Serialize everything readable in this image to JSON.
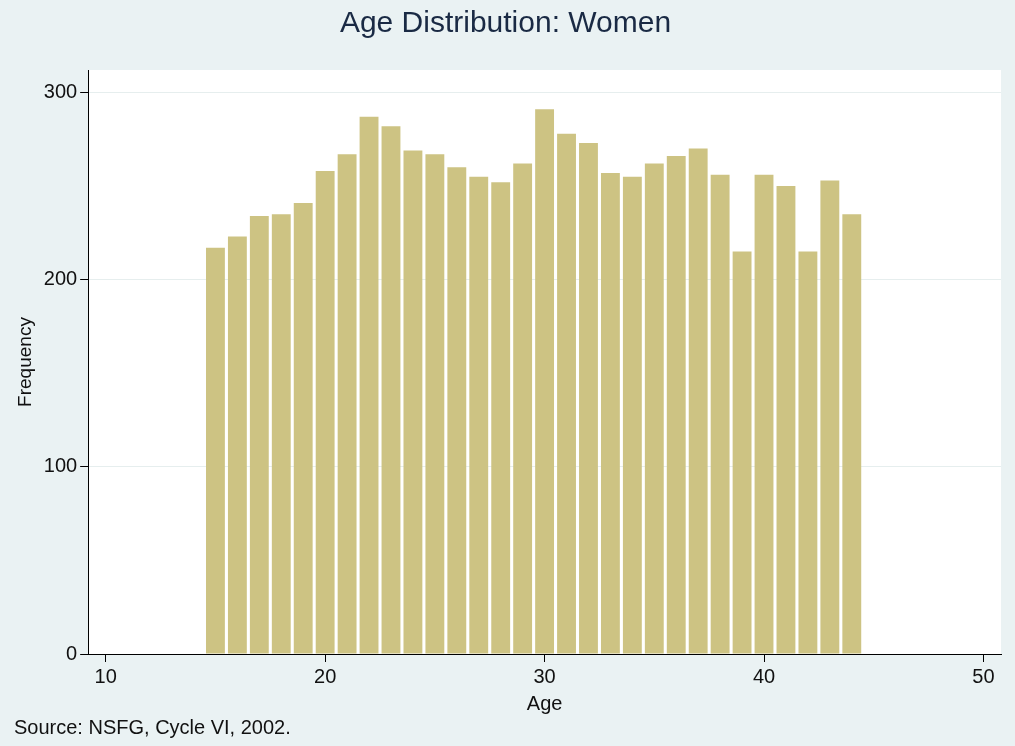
{
  "chart_data": {
    "type": "histogram",
    "title": "Age Distribution: Women",
    "xlabel": "Age",
    "ylabel": "Frequency",
    "bins": [
      14.5,
      15.5,
      16.5,
      17.5,
      18.5,
      19.5,
      20.5,
      21.5,
      22.5,
      23.5,
      24.5,
      25.5,
      26.5,
      27.5,
      28.5,
      29.5,
      30.5,
      31.5,
      32.5,
      33.5,
      34.5,
      35.5,
      36.5,
      37.5,
      38.5,
      39.5,
      40.5,
      41.5,
      42.5,
      43.5,
      44.5
    ],
    "values": [
      217,
      223,
      234,
      235,
      241,
      258,
      267,
      287,
      282,
      269,
      267,
      260,
      255,
      252,
      262,
      291,
      278,
      273,
      257,
      255,
      262,
      266,
      270,
      256,
      215,
      256,
      250,
      215,
      253,
      235
    ],
    "color": "#cdc383",
    "xlim": [
      9.2,
      50.8
    ],
    "xticks": [
      10,
      20,
      30,
      40,
      50
    ],
    "ylim": [
      0,
      312
    ],
    "yticks": [
      0,
      100,
      200,
      300
    ],
    "grid": "y",
    "annotations": [
      "Source: NSFG, Cycle VI, 2002."
    ]
  }
}
